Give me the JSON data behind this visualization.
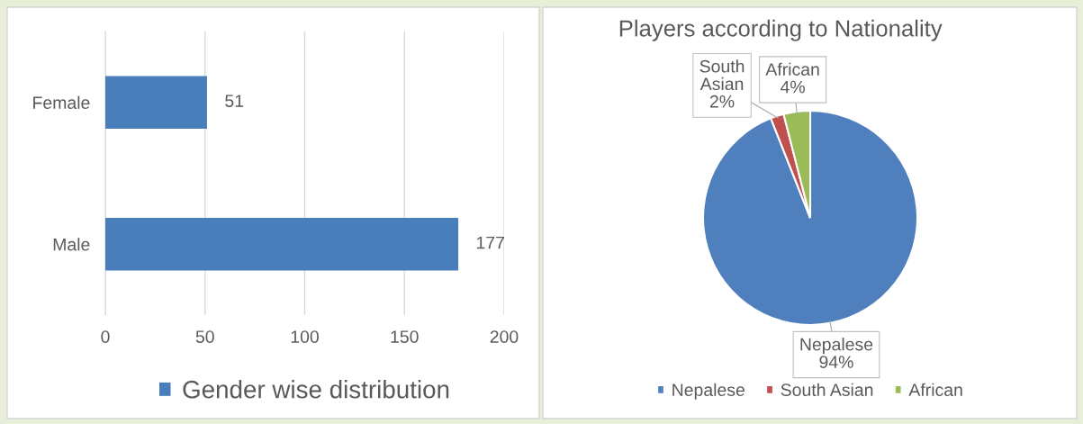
{
  "chart_data": [
    {
      "type": "bar",
      "orientation": "horizontal",
      "categories": [
        "Female",
        "Male"
      ],
      "series": [
        {
          "name": "Gender wise distribution",
          "color": "#4a7ebb",
          "values": [
            51,
            177
          ]
        }
      ],
      "xlim": [
        0,
        200
      ],
      "xticks": [
        0,
        50,
        100,
        150,
        200
      ],
      "grid": "x",
      "legend": "bottom",
      "data_labels": true
    },
    {
      "type": "pie",
      "title": "Players according to Nationality",
      "categories": [
        "Nepalese",
        "South Asian",
        "African"
      ],
      "values": [
        94,
        2,
        4
      ],
      "colors": [
        "#4f7fbd",
        "#c0504d",
        "#9bbb59"
      ],
      "value_labels": [
        "94%",
        "2%",
        "4%"
      ],
      "legend": "bottom"
    }
  ]
}
